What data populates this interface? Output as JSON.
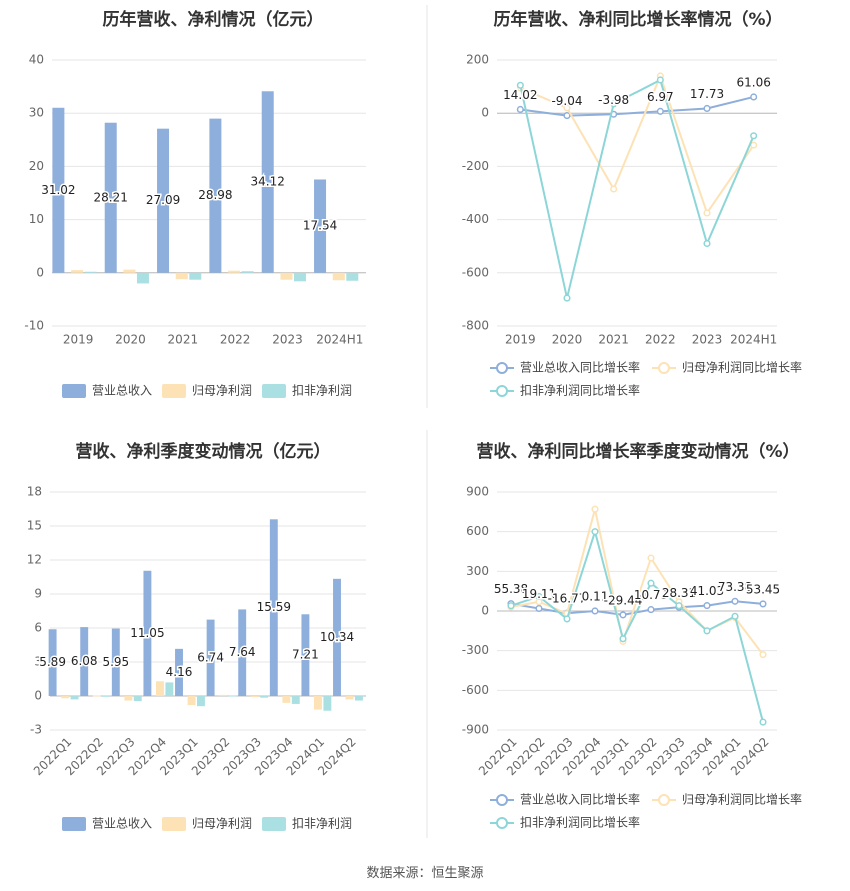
{
  "colors": {
    "revenue": "#8eaedb",
    "parent_net_profit": "#fde2b5",
    "deducted_net_profit": "#abe0e3",
    "revenue_growth_line": "#8eaedb",
    "parent_growth_line": "#fde2b5",
    "deducted_growth_line": "#8dd6d8",
    "grid": "#e6e6e6",
    "axis_text": "#666666",
    "title_text": "#333333",
    "divider": "#e6e6e6"
  },
  "footer": {
    "text": "数据来源：恒生聚源"
  },
  "chart_data": [
    {
      "type": "bar",
      "title": "历年营收、净利情况（亿元）",
      "categories": [
        "2019",
        "2020",
        "2021",
        "2022",
        "2023",
        "2024H1"
      ],
      "ylim": [
        -10,
        40
      ],
      "yticks": [
        -10,
        0,
        10,
        20,
        30,
        40
      ],
      "grid": true,
      "legend_position": "bottom",
      "series": [
        {
          "name": "营业总收入",
          "values": [
            31.02,
            28.21,
            27.09,
            28.98,
            34.12,
            17.54
          ],
          "labels": [
            "31.02",
            "28.21",
            "27.09",
            "28.98",
            "34.12",
            "17.54"
          ]
        },
        {
          "name": "归母净利润",
          "values": [
            0.5,
            0.6,
            -1.2,
            0.4,
            -1.3,
            -1.4
          ]
        },
        {
          "name": "扣非净利润",
          "values": [
            0.2,
            -2.0,
            -1.3,
            0.3,
            -1.6,
            -1.5
          ]
        }
      ]
    },
    {
      "type": "line",
      "title": "历年营收、净利同比增长率情况（%）",
      "categories": [
        "2019",
        "2020",
        "2021",
        "2022",
        "2023",
        "2024H1"
      ],
      "ylim": [
        -800,
        200
      ],
      "yticks": [
        -800,
        -600,
        -400,
        -200,
        0,
        200
      ],
      "grid": true,
      "legend_position": "bottom",
      "series": [
        {
          "name": "营业总收入同比增长率",
          "values": [
            14.02,
            -9.04,
            -3.98,
            6.97,
            17.73,
            61.06
          ],
          "labels": [
            "14.02",
            "-9.04",
            "-3.98",
            "6.97",
            "17.73",
            "61.06"
          ]
        },
        {
          "name": "归母净利润同比增长率",
          "values": [
            95,
            20,
            -285,
            140,
            -375,
            -120
          ]
        },
        {
          "name": "扣非净利润同比增长率",
          "values": [
            105,
            -695,
            35,
            125,
            -490,
            -85
          ]
        }
      ]
    },
    {
      "type": "bar",
      "title": "营收、净利季度变动情况（亿元）",
      "categories": [
        "2022Q1",
        "2022Q2",
        "2022Q3",
        "2022Q4",
        "2023Q1",
        "2023Q2",
        "2023Q3",
        "2023Q4",
        "2024Q1",
        "2024Q2"
      ],
      "ylim": [
        -3,
        18
      ],
      "yticks": [
        -3,
        0,
        3,
        6,
        9,
        12,
        15,
        18
      ],
      "grid": true,
      "legend_position": "bottom",
      "series": [
        {
          "name": "营业总收入",
          "values": [
            5.89,
            6.08,
            5.95,
            11.05,
            4.16,
            6.74,
            7.64,
            15.59,
            7.21,
            10.34
          ],
          "labels": [
            "5.89",
            "6.08",
            "5.95",
            "11.05",
            "4.16",
            "6.74",
            "7.64",
            "15.59",
            "7.21",
            "10.34"
          ]
        },
        {
          "name": "归母净利润",
          "values": [
            -0.2,
            0.05,
            -0.4,
            1.3,
            -0.8,
            0.1,
            -0.1,
            -0.6,
            -1.2,
            -0.3
          ]
        },
        {
          "name": "扣非净利润",
          "values": [
            -0.3,
            0.02,
            -0.45,
            1.2,
            -0.9,
            0.05,
            -0.15,
            -0.7,
            -1.3,
            -0.4
          ]
        }
      ]
    },
    {
      "type": "line",
      "title": "营收、净利同比增长率季度变动情况（%）",
      "categories": [
        "2022Q1",
        "2022Q2",
        "2022Q3",
        "2022Q4",
        "2023Q1",
        "2023Q2",
        "2023Q3",
        "2023Q4",
        "2024Q1",
        "2024Q2"
      ],
      "ylim": [
        -900,
        900
      ],
      "yticks": [
        -900,
        -600,
        -300,
        0,
        300,
        600,
        900
      ],
      "grid": true,
      "legend_position": "bottom",
      "series": [
        {
          "name": "营业总收入同比增长率",
          "values": [
            55.38,
            19.11,
            -16.77,
            0.11,
            -29.44,
            10.73,
            28.31,
            41.03,
            73.38,
            53.45
          ],
          "labels": [
            "55.38",
            "19.11",
            "-16.77",
            "0.11",
            "-29.44",
            "10.73",
            "28.31",
            "41.03",
            "73.38",
            "53.45"
          ]
        },
        {
          "name": "归母净利润同比增长率",
          "values": [
            30,
            70,
            -20,
            770,
            -230,
            400,
            70,
            -150,
            -50,
            -330
          ]
        },
        {
          "name": "扣非净利润同比增长率",
          "values": [
            40,
            110,
            -60,
            600,
            -210,
            210,
            40,
            -150,
            -40,
            -840
          ]
        }
      ]
    }
  ]
}
